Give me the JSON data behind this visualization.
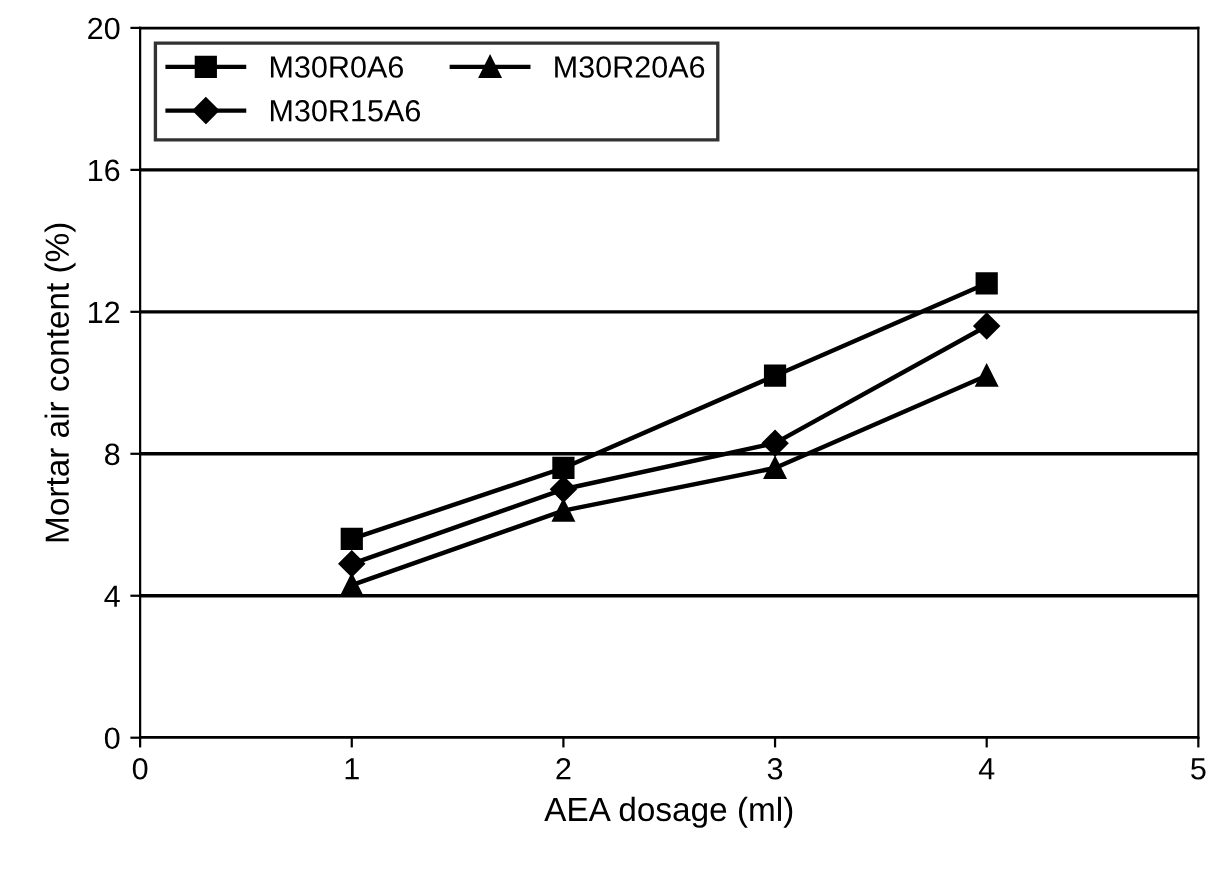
{
  "chart_data": {
    "type": "line",
    "xlabel": "AEA dosage (ml)",
    "ylabel": "Mortar air content (%)",
    "x": [
      1,
      2,
      3,
      4
    ],
    "series": [
      {
        "name": "M30R0A6",
        "color": "#000000",
        "marker": "square",
        "values": [
          5.6,
          7.6,
          10.2,
          12.8
        ]
      },
      {
        "name": "M30R15A6",
        "color": "#000000",
        "marker": "diamond",
        "values": [
          4.9,
          7.0,
          8.3,
          11.6
        ]
      },
      {
        "name": "M30R20A6",
        "color": "#000000",
        "marker": "triangle",
        "values": [
          4.3,
          6.4,
          7.6,
          10.2
        ]
      }
    ],
    "xlim": [
      0,
      5
    ],
    "xticks": [
      0,
      1,
      2,
      3,
      4,
      5
    ],
    "ylim": [
      0,
      20
    ],
    "yticks": [
      0,
      4,
      8,
      12,
      16,
      20
    ],
    "grid": "y",
    "legend": "top left",
    "line_style": "solid"
  }
}
